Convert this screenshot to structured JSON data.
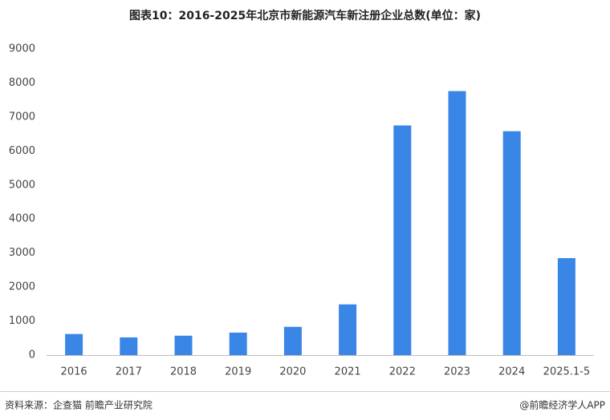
{
  "chart_data": {
    "type": "bar",
    "title": "图表10：2016-2025年北京市新能源汽车新注册企业总数(单位：家)",
    "categories": [
      "2016",
      "2017",
      "2018",
      "2019",
      "2020",
      "2021",
      "2022",
      "2023",
      "2024",
      "2025.1-5"
    ],
    "values": [
      620,
      520,
      570,
      660,
      830,
      1490,
      6750,
      7760,
      6580,
      2850
    ],
    "color": "#3a86e6",
    "ylim": [
      0,
      9000
    ],
    "yticks": [
      0,
      1000,
      2000,
      3000,
      4000,
      5000,
      6000,
      7000,
      8000,
      9000
    ],
    "grid": false,
    "source": "资料来源：企查猫 前瞻产业研究院",
    "credit": "@前瞻经济学人APP"
  }
}
